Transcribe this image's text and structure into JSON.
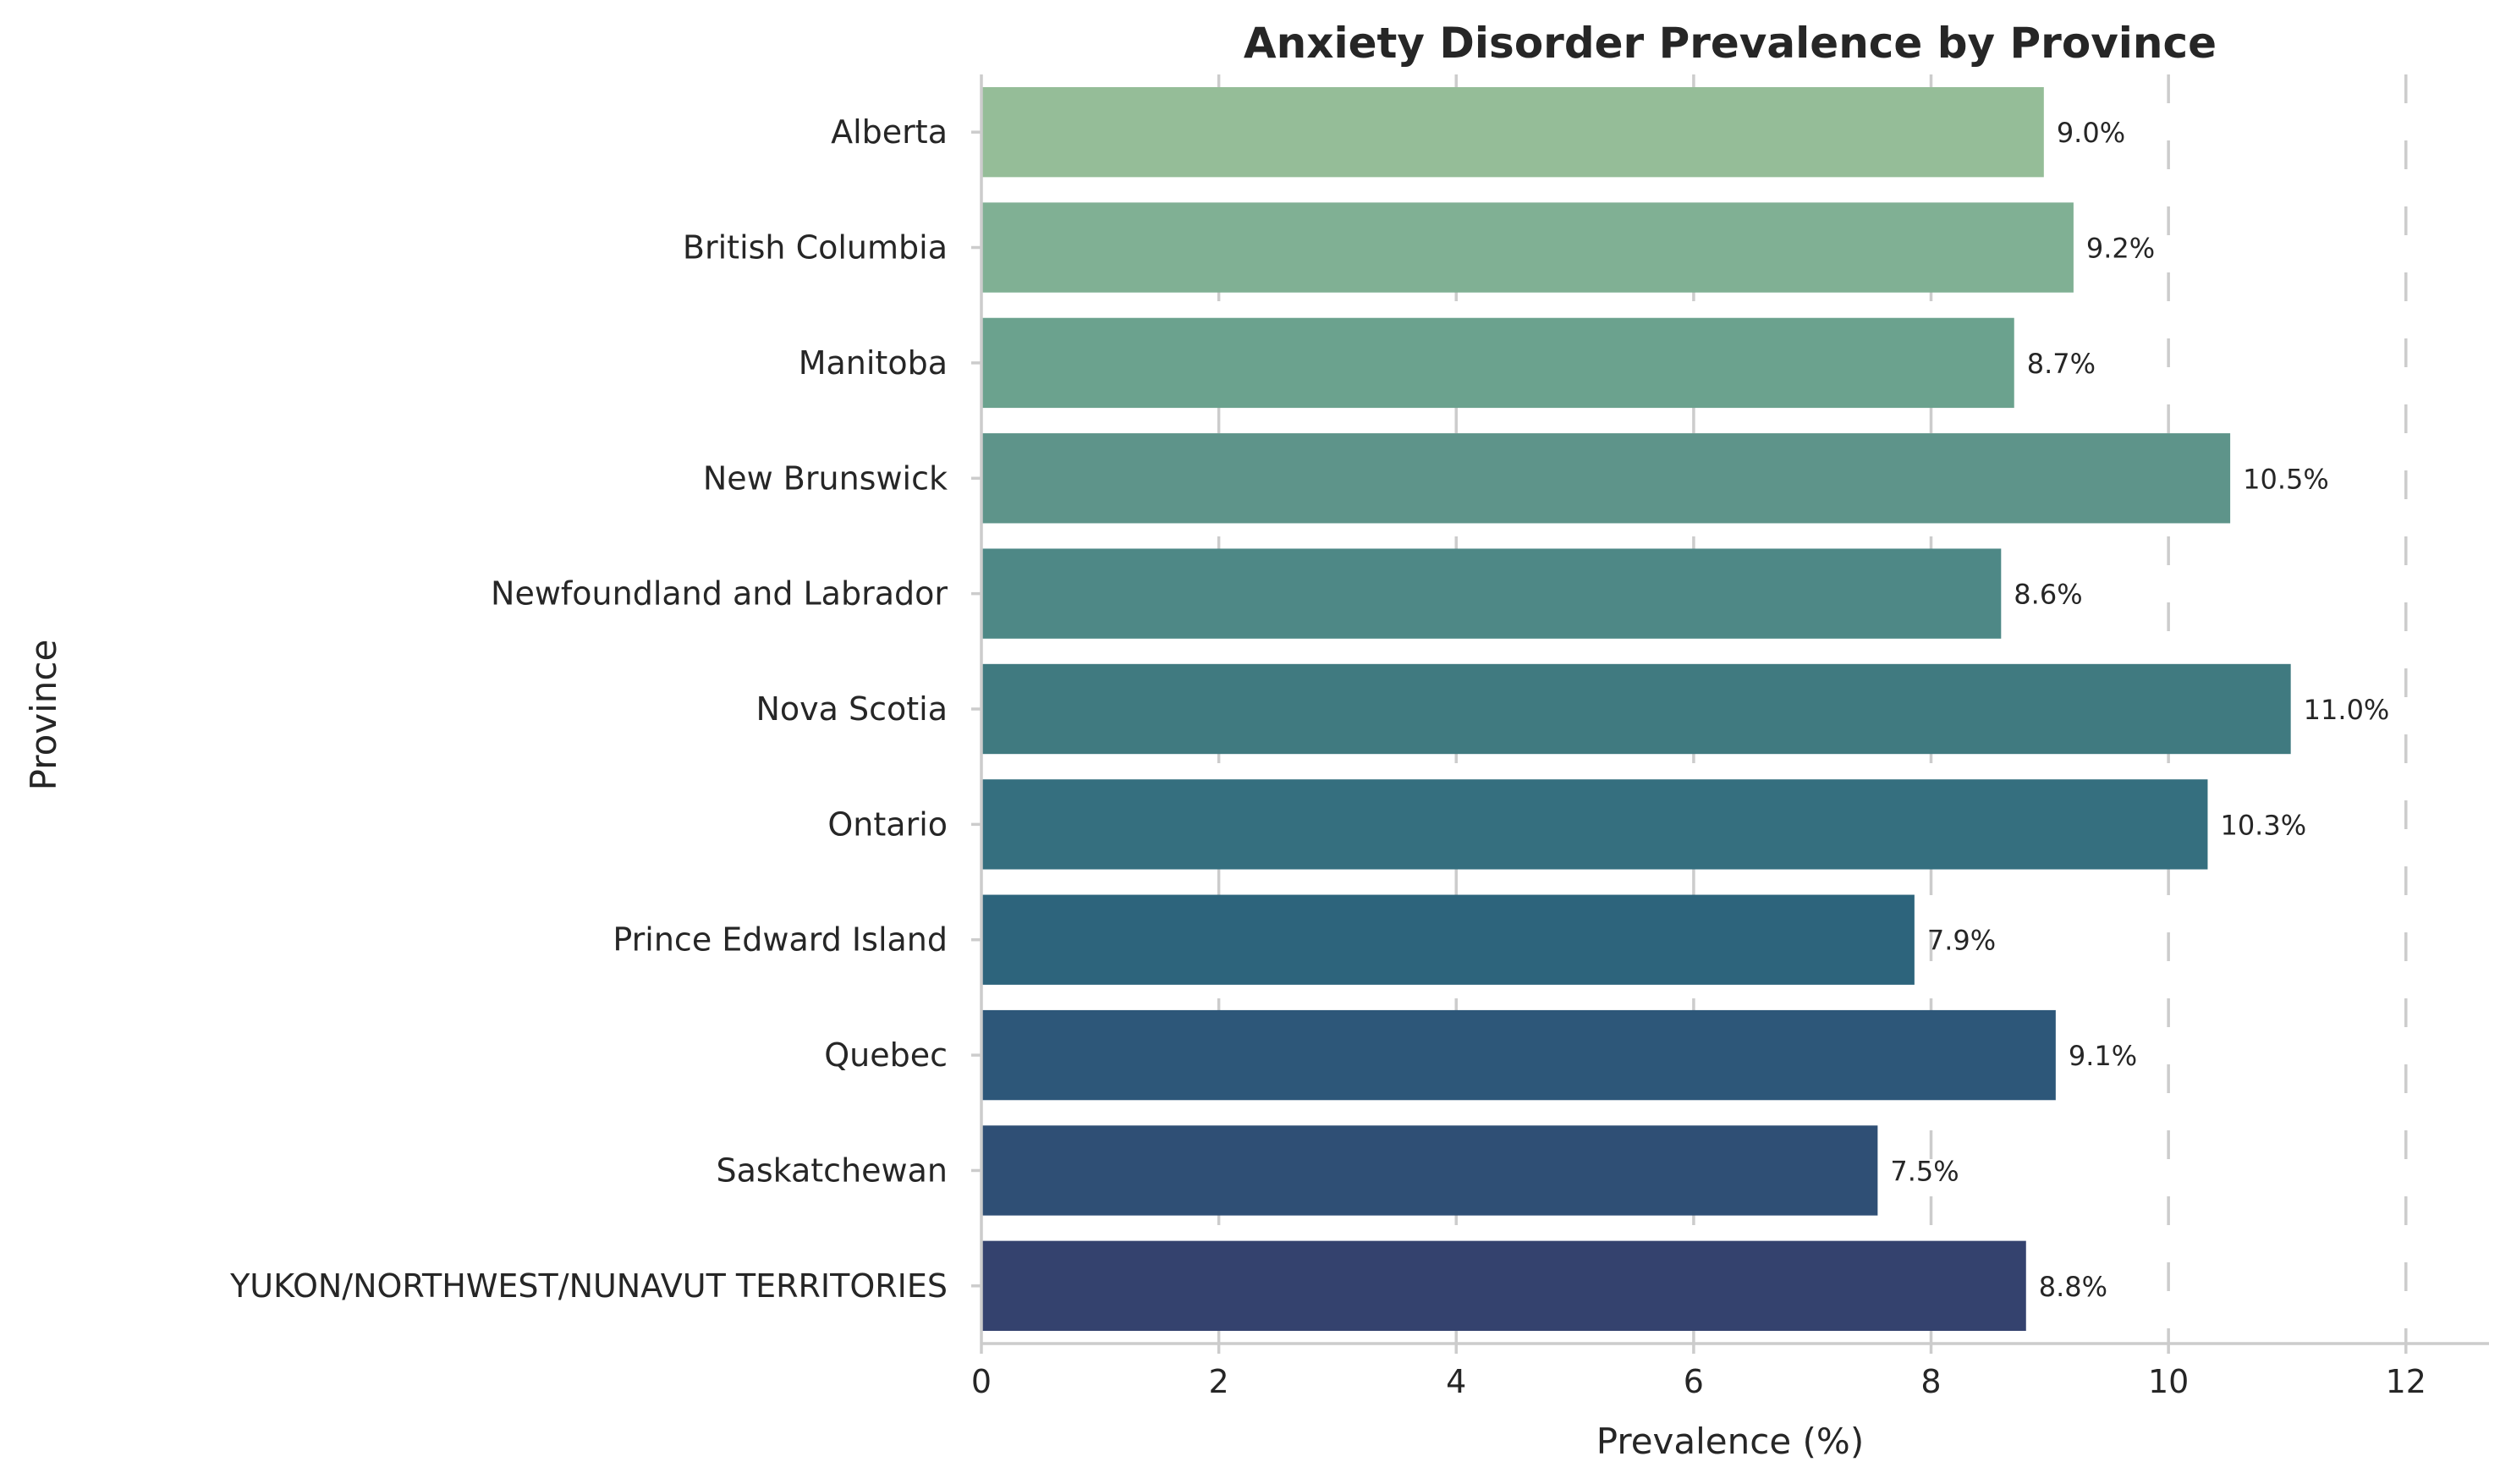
{
  "chart_data": {
    "type": "bar",
    "orientation": "horizontal",
    "title": "Anxiety Disorder Prevalence by Province",
    "xlabel": "Prevalence (%)",
    "ylabel": "Province",
    "xlim": [
      0,
      12.7
    ],
    "xticks": [
      0,
      2,
      4,
      6,
      8,
      10,
      12
    ],
    "grid": "vertical dashed",
    "categories": [
      "Alberta",
      "British Columbia",
      "Manitoba",
      "New Brunswick",
      "Newfoundland and Labrador",
      "Nova Scotia",
      "Ontario",
      "Prince Edward Island",
      "Quebec",
      "Saskatchewan",
      "YUKON/NORTHWEST/NUNAVUT TERRITORIES"
    ],
    "values": [
      8.95,
      9.2,
      8.7,
      10.52,
      8.59,
      11.03,
      10.33,
      7.86,
      9.05,
      7.55,
      8.8
    ],
    "value_labels": [
      "9.0%",
      "9.2%",
      "8.7%",
      "10.5%",
      "8.6%",
      "11.0%",
      "10.3%",
      "7.9%",
      "9.1%",
      "7.5%",
      "8.8%"
    ],
    "colors": [
      "#95bd98",
      "#80b094",
      "#6ba28e",
      "#5e948a",
      "#4e8886",
      "#407a80",
      "#356f7f",
      "#2d647c",
      "#2d5779",
      "#2f4f75",
      "#34426e"
    ]
  }
}
